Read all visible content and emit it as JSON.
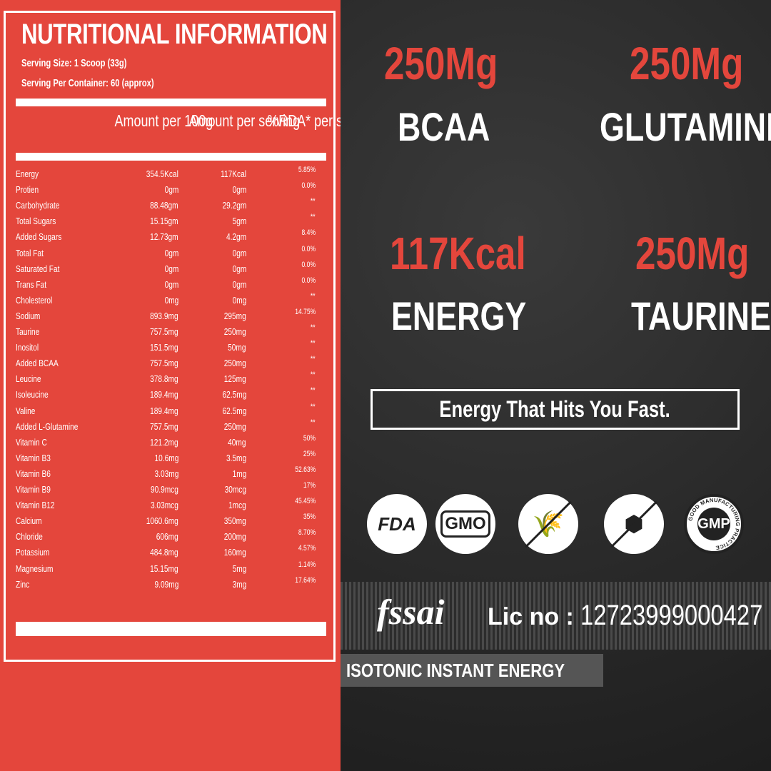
{
  "panel": {
    "title": "NUTRITIONAL INFORMATION",
    "serving_size": "Serving Size: 1 Scoop (33g)",
    "servings_per_container": "Serving Per Container: 60 (approx)",
    "headers": [
      "Amount per 100g",
      "Amount per serving",
      "%RDA* per serving"
    ],
    "rows": [
      [
        "Energy",
        "354.5Kcal",
        "117Kcal",
        "5.85%"
      ],
      [
        "Protien",
        "0gm",
        "0gm",
        "0.0%"
      ],
      [
        "Carbohydrate",
        "88.48gm",
        "29.2gm",
        "**"
      ],
      [
        "Total Sugars",
        "15.15gm",
        "5gm",
        "**"
      ],
      [
        "Added Sugars",
        "12.73gm",
        "4.2gm",
        "8.4%"
      ],
      [
        "Total Fat",
        "0gm",
        "0gm",
        "0.0%"
      ],
      [
        "Saturated Fat",
        "0gm",
        "0gm",
        "0.0%"
      ],
      [
        "Trans Fat",
        "0gm",
        "0gm",
        "0.0%"
      ],
      [
        "Cholesterol",
        "0mg",
        "0mg",
        "**"
      ],
      [
        "Sodium",
        "893.9mg",
        "295mg",
        "14.75%"
      ],
      [
        "Taurine",
        "757.5mg",
        "250mg",
        "**"
      ],
      [
        "Inositol",
        "151.5mg",
        "50mg",
        "**"
      ],
      [
        "Added BCAA",
        "757.5mg",
        "250mg",
        "**"
      ],
      [
        "Leucine",
        "378.8mg",
        "125mg",
        "**"
      ],
      [
        "Isoleucine",
        "189.4mg",
        "62.5mg",
        "**"
      ],
      [
        "Valine",
        "189.4mg",
        "62.5mg",
        "**"
      ],
      [
        "Added L-Glutamine",
        "757.5mg",
        "250mg",
        "**"
      ],
      [
        "Vitamin C",
        "121.2mg",
        "40mg",
        "50%"
      ],
      [
        "Vitamin B3",
        "10.6mg",
        "3.5mg",
        "25%"
      ],
      [
        "Vitamin B6",
        "3.03mg",
        "1mg",
        "52.63%"
      ],
      [
        "Vitamin B9",
        "90.9mcg",
        "30mcg",
        "17%"
      ],
      [
        "Vitamin B12",
        "3.03mcg",
        "1mcg",
        "45.45%"
      ],
      [
        "Calcium",
        "1060.6mg",
        "350mg",
        "35%"
      ],
      [
        "Chloride",
        "606mg",
        "200mg",
        "8.70%"
      ],
      [
        "Potassium",
        "484.8mg",
        "160mg",
        "4.57%"
      ],
      [
        "Magnesium",
        "15.15mg",
        "5mg",
        "1.14%"
      ],
      [
        "Zinc",
        "9.09mg",
        "3mg",
        "17.64%"
      ]
    ]
  },
  "highlights": [
    {
      "value": "250Mg",
      "label": "BCAA"
    },
    {
      "value": "250Mg",
      "label": "GLUTAMINE"
    },
    {
      "value": "117Kcal",
      "label": "ENERGY"
    },
    {
      "value": "250Mg",
      "label": "TAURINE"
    }
  ],
  "tagline": "Energy That Hits You Fast.",
  "badges": [
    {
      "icon": "fda-icon",
      "text": "FDA"
    },
    {
      "icon": "gmo-icon",
      "text": "GMO"
    },
    {
      "icon": "gluten-free-icon",
      "text": ""
    },
    {
      "icon": "sugar-free-icon",
      "text": ""
    },
    {
      "icon": "gmp-icon",
      "text": "GMP",
      "ring": "GOOD MANUFACTURING PRACTICE"
    }
  ],
  "fssai": {
    "logo": "fssai",
    "lic_label": "Lic no :",
    "lic_number": "12723999000427"
  },
  "footer_label": "ISOTONIC INSTANT ENERGY",
  "colors": {
    "accent": "#e4463c",
    "dark": "#2b2b2b"
  }
}
